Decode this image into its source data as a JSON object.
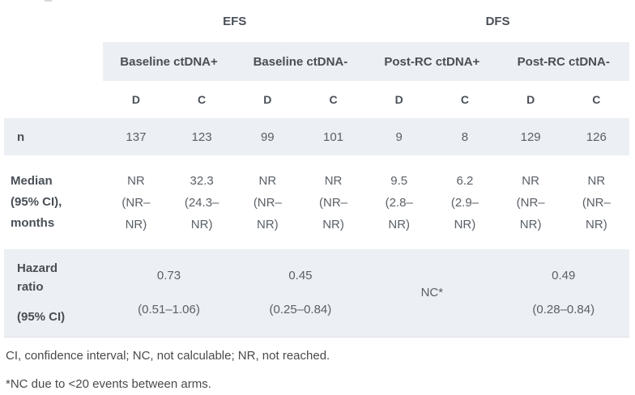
{
  "table": {
    "section_headers": [
      "EFS",
      "DFS"
    ],
    "group_headers": [
      "Baseline ctDNA+",
      "Baseline ctDNA-",
      "Post-RC ctDNA+",
      "Post-RC ctDNA-"
    ],
    "arm_headers": [
      "D",
      "C",
      "D",
      "C",
      "D",
      "C",
      "D",
      "C"
    ],
    "rows": {
      "n": {
        "label": "n",
        "values": [
          "137",
          "123",
          "99",
          "101",
          "9",
          "8",
          "129",
          "126"
        ]
      },
      "median": {
        "label_lines": [
          "Median",
          "(95% CI),",
          "months"
        ],
        "cells": [
          {
            "value": "NR",
            "ci_open": "(NR–",
            "ci_close": "NR)"
          },
          {
            "value": "32.3",
            "ci_open": "(24.3–",
            "ci_close": "NR)"
          },
          {
            "value": "NR",
            "ci_open": "(NR–",
            "ci_close": "NR)"
          },
          {
            "value": "NR",
            "ci_open": "(NR–",
            "ci_close": "NR)"
          },
          {
            "value": "9.5",
            "ci_open": "(2.8–",
            "ci_close": "NR)"
          },
          {
            "value": "6.2",
            "ci_open": "(2.9–",
            "ci_close": "NR)"
          },
          {
            "value": "NR",
            "ci_open": "(NR–",
            "ci_close": "NR)"
          },
          {
            "value": "NR",
            "ci_open": "(NR–",
            "ci_close": "NR)"
          }
        ]
      },
      "hazard": {
        "label_top": "Hazard ratio",
        "label_bottom": "(95% CI)",
        "cells": [
          {
            "value": "0.73",
            "ci": "(0.51–1.06)"
          },
          {
            "value": "0.45",
            "ci": "(0.25–0.84)"
          },
          {
            "value": "NC*",
            "ci": ""
          },
          {
            "value": "0.49",
            "ci": "(0.28–0.84)"
          }
        ]
      }
    }
  },
  "footnotes": [
    "CI, confidence interval; NC, not calculable; NR, not reached.",
    "*NC due to <20 events between arms."
  ],
  "colors": {
    "band_background": "#eceff3",
    "header_text": "#494f57",
    "value_text": "#5a6067",
    "footnote_text": "#4a4a4a"
  }
}
